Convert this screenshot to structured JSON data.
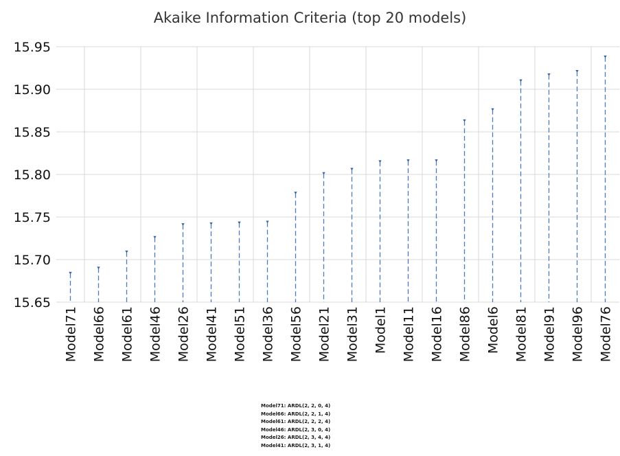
{
  "chart_data": {
    "type": "scatter",
    "style": "drop-lines",
    "title": "Akaike Information Criteria (top 20 models)",
    "categories": [
      "Model71",
      "Model66",
      "Model61",
      "Model46",
      "Model26",
      "Model41",
      "Model51",
      "Model36",
      "Model56",
      "Model21",
      "Model31",
      "Model1",
      "Model11",
      "Model16",
      "Model86",
      "Model6",
      "Model81",
      "Model91",
      "Model96",
      "Model76"
    ],
    "values": [
      15.684,
      15.69,
      15.709,
      15.726,
      15.741,
      15.742,
      15.743,
      15.744,
      15.778,
      15.801,
      15.806,
      15.815,
      15.816,
      15.816,
      15.863,
      15.876,
      15.91,
      15.917,
      15.921,
      15.938
    ],
    "ylim": [
      15.65,
      15.95
    ],
    "yticks": [
      "15.65",
      "15.70",
      "15.75",
      "15.80",
      "15.85",
      "15.90",
      "15.95"
    ],
    "grid": true,
    "line_color": "#4a7ab8",
    "grid_color": "#d9d9d9"
  },
  "footnote": [
    "Model71: ARDL(2, 2, 0, 4)",
    "Model66: ARDL(2, 2, 1, 4)",
    "Model61: ARDL(2, 2, 2, 4)",
    "Model46: ARDL(2, 3, 0, 4)",
    "Model26: ARDL(2, 3, 4, 4)",
    "Model41: ARDL(2, 3, 1, 4)"
  ]
}
